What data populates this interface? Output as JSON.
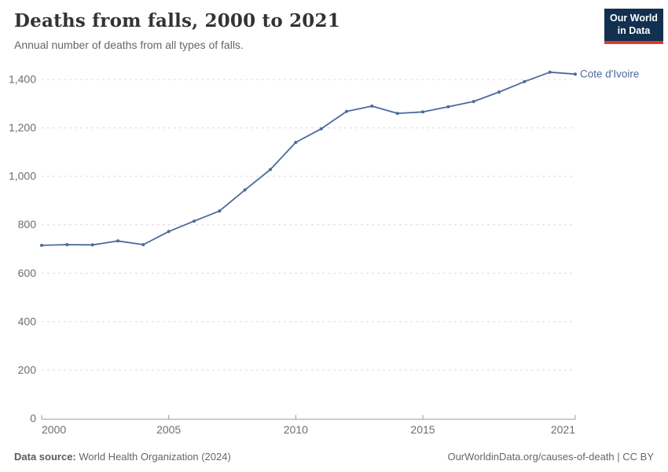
{
  "header": {
    "title": "Deaths from falls, 2000 to 2021",
    "subtitle": "Annual number of deaths from all types of falls."
  },
  "logo": {
    "line1": "Our World",
    "line2": "in Data",
    "navy": "#12304f",
    "red": "#d93a2e"
  },
  "chart_data": {
    "type": "line",
    "title": "Deaths from falls, 2000 to 2021",
    "subtitle": "Annual number of deaths from all types of falls.",
    "x": [
      2000,
      2001,
      2002,
      2003,
      2004,
      2005,
      2006,
      2007,
      2008,
      2009,
      2010,
      2011,
      2012,
      2013,
      2014,
      2015,
      2016,
      2017,
      2018,
      2019,
      2020,
      2021
    ],
    "series": [
      {
        "name": "Cote d'Ivoire",
        "color": "#4C6A9C",
        "values": [
          715,
          718,
          717,
          733,
          718,
          772,
          815,
          857,
          944,
          1028,
          1140,
          1196,
          1268,
          1290,
          1260,
          1266,
          1287,
          1309,
          1348,
          1391,
          1430,
          1422
        ]
      }
    ],
    "xlim": [
      2000,
      2021
    ],
    "ylim": [
      0,
      1400
    ],
    "yticks": [
      0,
      200,
      400,
      600,
      800,
      1000,
      1200,
      1400
    ],
    "ytick_labels": [
      "0",
      "200",
      "400",
      "600",
      "800",
      "1,000",
      "1,200",
      "1,400"
    ],
    "xticks": [
      2000,
      2005,
      2010,
      2015,
      2021
    ],
    "xtick_labels": [
      "2000",
      "2005",
      "2010",
      "2015",
      "2021"
    ],
    "grid": "horizontal-dashed",
    "legend_position": "end-of-line-label",
    "colors": {
      "gridline": "#dcdcdc",
      "axis": "#999999",
      "tick_label": "#6e6e6e"
    }
  },
  "footer": {
    "source_label": "Data source:",
    "source_value": " World Health Organization (2024)",
    "credit": "OurWorldinData.org/causes-of-death | CC BY"
  }
}
